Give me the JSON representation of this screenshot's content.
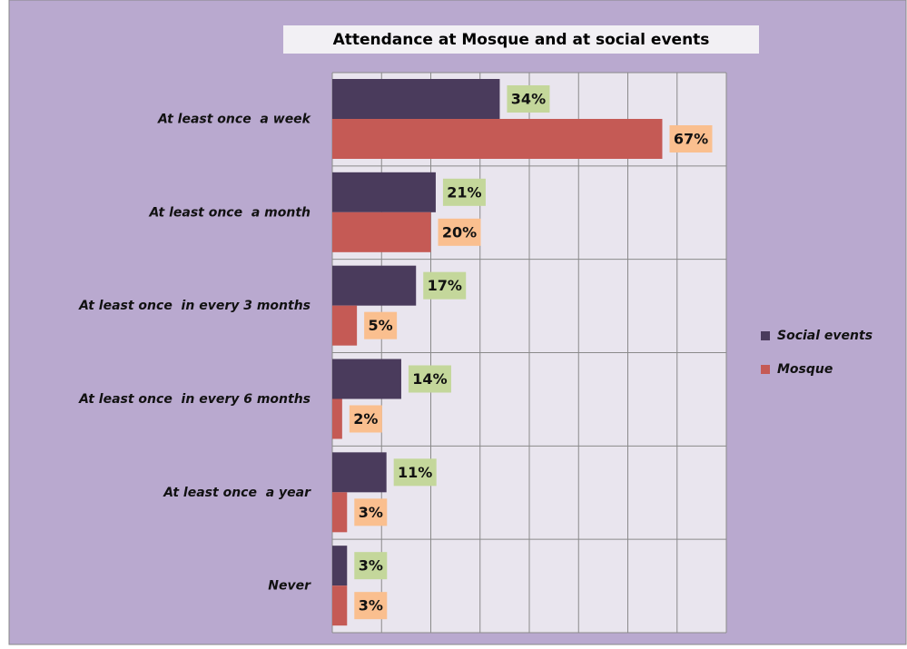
{
  "chart_data": {
    "type": "hbar",
    "title": "Attendance at Mosque and at social events",
    "categories": [
      "At least once  a week",
      "At least once  a month",
      "At least once  in every 3 months",
      "At least once  in every 6 months",
      "At least once  a year",
      "Never"
    ],
    "series": [
      {
        "name": "Social events",
        "color": "#4a3b5c",
        "label_bg": "#c4d79b",
        "values": [
          34,
          21,
          17,
          14,
          11,
          3
        ],
        "value_labels": [
          "34%",
          "21%",
          "17%",
          "14%",
          "11%",
          "3%"
        ]
      },
      {
        "name": "Mosque",
        "color": "#c55a55",
        "label_bg": "#fabf8f",
        "values": [
          67,
          20,
          5,
          2,
          3,
          3
        ],
        "value_labels": [
          "67%",
          "20%",
          "5%",
          "2%",
          "3%",
          "3%"
        ]
      }
    ],
    "xlim": [
      0,
      80
    ],
    "xticks": [
      0,
      10,
      20,
      30,
      40,
      50,
      60,
      70,
      80
    ],
    "grid": true,
    "legend": "right"
  }
}
